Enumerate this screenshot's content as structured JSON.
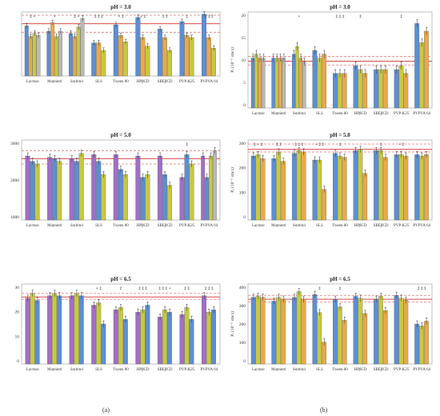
{
  "figure": {
    "colors": {
      "bar1": "#5b8fd6",
      "bar2": "#c7c940",
      "bar3": "#e9a94a",
      "bar4": "#b9b9b9",
      "bar5": "#a06fc6",
      "bar6": "#f0a8a4",
      "ref_solid": "#d32f2f",
      "ref_dashed": "#e57373",
      "sig": "#555555"
    }
  },
  "chart_data": [
    {
      "id": "a1",
      "type": "bar",
      "title": "pH = 3.0",
      "categories": [
        "Lactose",
        "Mannitol",
        "Sorbitol",
        "SLS",
        "Tween 80",
        "HPβCD",
        "SBEβCD",
        "PVP-K25",
        "PVPVA 64"
      ],
      "ylabel": "",
      "ylim": [
        0,
        3000
      ],
      "yticks": [],
      "series_colors": [
        "bar1",
        "bar3",
        "bar2",
        "bar4"
      ],
      "values": [
        [
          2350,
          1850,
          2000,
          1900
        ],
        [
          2100,
          2500,
          1850,
          2100
        ],
        [
          2000,
          1850,
          2300,
          2700
        ],
        [
          1550,
          1550,
          1200,
          null
        ],
        [
          2400,
          1900,
          1600,
          null
        ],
        [
          2750,
          1800,
          1400,
          null
        ],
        [
          2200,
          1800,
          1200,
          null
        ],
        [
          2550,
          1900,
          1800,
          null
        ],
        [
          2900,
          1800,
          1300,
          null
        ]
      ],
      "ref_solid": 2450,
      "ref_dashed": [
        2850,
        2050
      ],
      "marks": [
        "‡ •",
        "•",
        "‡ •",
        "‡ ‡ ‡",
        "• ‡",
        "• ‡",
        "‡ ‡",
        "‡",
        "‡ ‡ ‡"
      ]
    },
    {
      "id": "a2",
      "type": "bar",
      "title": "pH = 5.0",
      "categories": [
        "Lactose",
        "Mannitol",
        "Sorbitol",
        "SLS",
        "Tween 80",
        "HPβCD",
        "SBEβCD",
        "PVP-K25",
        "PVPVA 64"
      ],
      "ylabel": "",
      "ylim": [
        0,
        3000
      ],
      "yticks": [
        "3000",
        "2000",
        "1000"
      ],
      "series_colors": [
        "bar5",
        "bar1",
        "bar2",
        "bar4"
      ],
      "values": [
        [
          2400,
          2200,
          2100,
          null
        ],
        [
          2350,
          2300,
          2200,
          null
        ],
        [
          2300,
          2200,
          2500,
          null
        ],
        [
          2450,
          2200,
          1700,
          null
        ],
        [
          2450,
          1900,
          1700,
          null
        ],
        [
          2400,
          1600,
          1700,
          null
        ],
        [
          2400,
          1700,
          1300,
          null
        ],
        [
          1600,
          2450,
          2100,
          null
        ],
        [
          2400,
          1600,
          2400,
          2600
        ]
      ],
      "ref_solid": 2300,
      "ref_dashed": [
        2600,
        2100
      ],
      "marks": [
        "",
        "",
        "",
        "",
        "",
        "",
        "",
        "‡",
        ""
      ]
    },
    {
      "id": "a3",
      "type": "bar",
      "title": "pH = 6.5",
      "categories": [
        "Lactose",
        "Mannitol",
        "Sorbitol",
        "SLS",
        "Tween 80",
        "HPβCD",
        "SBEβCD",
        "PVP-K25",
        "PVPVA 64"
      ],
      "ylabel": "",
      "ylim": [
        0,
        34
      ],
      "yticks": [
        "30",
        "20",
        "10",
        "0"
      ],
      "series_colors": [
        "bar5",
        "bar2",
        "bar1",
        "bar4",
        "bar6"
      ],
      "values": [
        [
          28,
          30,
          27,
          null,
          null
        ],
        [
          29,
          30,
          29,
          null,
          null
        ],
        [
          29,
          30,
          29,
          null,
          null
        ],
        [
          25,
          26,
          17,
          null,
          null
        ],
        [
          23,
          24,
          19,
          null,
          null
        ],
        [
          22,
          23,
          25,
          null,
          null
        ],
        [
          20,
          23,
          22,
          null,
          null
        ],
        [
          21,
          24,
          19,
          null,
          null
        ],
        [
          29,
          22,
          23,
          null,
          null
        ]
      ],
      "ref_solid": 28.5,
      "ref_dashed": [
        30,
        27.5
      ],
      "marks": [
        "",
        "",
        "",
        "•  ‡",
        "‡",
        "‡ ‡ ‡",
        "‡ ‡ ‡ •",
        "‡ ‡",
        "‡ ‡ ‡"
      ]
    },
    {
      "id": "b1",
      "type": "bar",
      "title": "pH = 3.0",
      "categories": [
        "Lactose",
        "Mannitol",
        "Sorbitol",
        "SLS",
        "Tween 80",
        "HPβCD",
        "SBEβCD",
        "PVP-K25",
        "PVPVA 64"
      ],
      "ylabel": "Pₑ (10⁻⁶ cm/s)",
      "ylim": [
        0,
        25
      ],
      "yticks": [
        "20",
        "15",
        "10",
        "5",
        "0"
      ],
      "series_colors": [
        "bar1",
        "bar2",
        "bar3",
        "bar4"
      ],
      "values": [
        [
          13,
          14,
          13,
          13
        ],
        [
          13,
          13,
          13,
          13
        ],
        [
          14,
          16,
          13,
          12
        ],
        [
          15,
          13,
          14,
          null
        ],
        [
          9,
          9,
          9,
          null
        ],
        [
          11,
          10,
          9,
          null
        ],
        [
          10,
          10,
          10,
          null
        ],
        [
          10,
          11,
          9,
          null
        ],
        [
          22,
          17,
          20,
          null
        ]
      ],
      "ref_solid": 12.2,
      "ref_dashed": [
        13.4,
        11.2
      ],
      "marks": [
        "",
        "",
        "•",
        "",
        "‡ ‡ ‡",
        "‡",
        "",
        "‡",
        ""
      ]
    },
    {
      "id": "b2",
      "type": "bar",
      "title": "pH = 5.0",
      "categories": [
        "Lactose",
        "Mannitol",
        "Sorbitol",
        "SLS",
        "Tween 80",
        "HPβCD",
        "SBEβCD",
        "PVP-K25",
        "PVPVA 64"
      ],
      "ylabel": "Pₑ (10⁻⁶ cm/s)",
      "ylim": [
        0,
        300
      ],
      "yticks": [
        "300",
        "200",
        "100",
        "0"
      ],
      "series_colors": [
        "bar1",
        "bar2",
        "bar3",
        "bar4"
      ],
      "values": [
        [
          240,
          245,
          230,
          null
        ],
        [
          230,
          255,
          220,
          null
        ],
        [
          250,
          260,
          255,
          null
        ],
        [
          225,
          225,
          115,
          null
        ],
        [
          250,
          240,
          235,
          null
        ],
        [
          260,
          265,
          175,
          null
        ],
        [
          260,
          260,
          235,
          null
        ],
        [
          245,
          245,
          240,
          null
        ],
        [
          245,
          240,
          245,
          null
        ]
      ],
      "ref_solid": 265,
      "ref_dashed": [
        285,
        255
      ],
      "marks": [
        "‡ • ‡",
        "‡ ‡",
        "‡ ‡ ‡",
        "• ‡ ‡",
        "‡",
        "",
        "‡",
        "• ‡",
        ""
      ]
    },
    {
      "id": "b3",
      "type": "bar",
      "title": "pH = 6.5",
      "categories": [
        "Lactose",
        "Mannitol",
        "Sorbitol",
        "SLS",
        "Tween 80",
        "HPβCD",
        "SBEβCD",
        "PVP-K25",
        "PVPVA 64"
      ],
      "ylabel": "Pₑ (10⁻⁶ cm/s)",
      "ylim": [
        0,
        420
      ],
      "yticks": [
        "400",
        "300",
        "200",
        "100",
        "0"
      ],
      "series_colors": [
        "bar1",
        "bar2",
        "bar3",
        "bar4"
      ],
      "values": [
        [
          350,
          355,
          350,
          null
        ],
        [
          330,
          350,
          340,
          null
        ],
        [
          350,
          380,
          340,
          null
        ],
        [
          365,
          270,
          115,
          null
        ],
        [
          340,
          300,
          230,
          null
        ],
        [
          355,
          345,
          265,
          null
        ],
        [
          340,
          355,
          280,
          null
        ],
        [
          360,
          345,
          335,
          null
        ],
        [
          210,
          200,
          225,
          null
        ]
      ],
      "ref_solid": 340,
      "ref_dashed": [
        360,
        325
      ],
      "marks": [
        "",
        "",
        "",
        "‡",
        "‡",
        "",
        "",
        "",
        "‡ ‡ ‡"
      ]
    }
  ],
  "captions": {
    "left": "(a)",
    "right": "(b)"
  }
}
